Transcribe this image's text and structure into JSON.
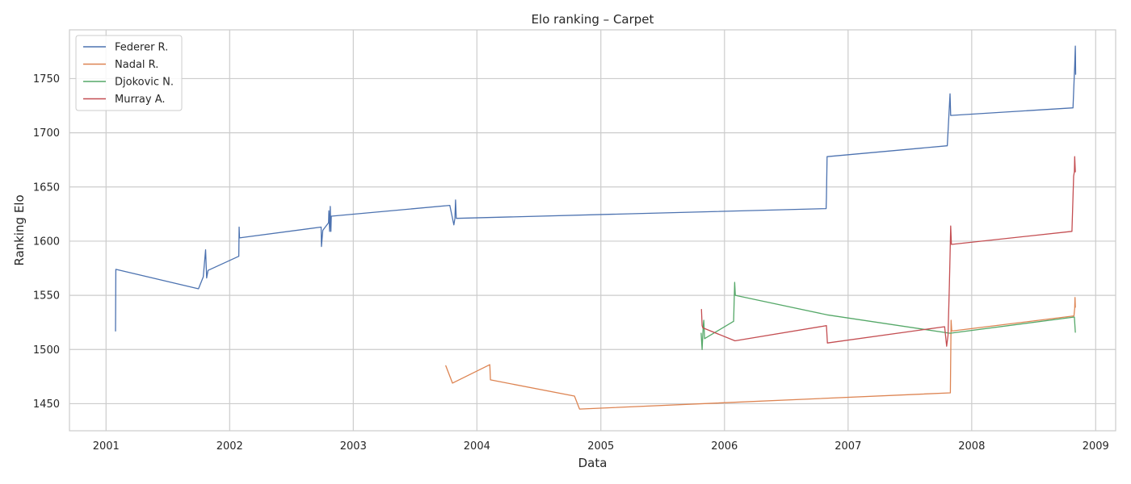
{
  "chart_data": {
    "type": "line",
    "title": "Elo ranking – Carpet",
    "xlabel": "Data",
    "ylabel": "Ranking Elo",
    "x_axis_type": "date",
    "xlim": [
      "2000-09-15",
      "2009-03-01"
    ],
    "ylim": [
      1425,
      1795
    ],
    "x_ticks": [
      "2001",
      "2002",
      "2003",
      "2004",
      "2005",
      "2006",
      "2007",
      "2008",
      "2009"
    ],
    "y_ticks": [
      1450,
      1500,
      1550,
      1600,
      1650,
      1700,
      1750
    ],
    "grid": true,
    "legend_position": "top-left",
    "series": [
      {
        "name": "Federer R.",
        "color": "#4c72b0",
        "points": [
          [
            "2001-01-29",
            1517
          ],
          [
            "2001-01-30",
            1574
          ],
          [
            "2001-10-01",
            1556
          ],
          [
            "2001-10-15",
            1567
          ],
          [
            "2001-10-22",
            1592
          ],
          [
            "2001-10-25",
            1566
          ],
          [
            "2001-10-29",
            1573
          ],
          [
            "2002-01-28",
            1586
          ],
          [
            "2002-01-29",
            1613
          ],
          [
            "2002-01-30",
            1603
          ],
          [
            "2002-09-28",
            1613
          ],
          [
            "2002-09-29",
            1595
          ],
          [
            "2002-10-03",
            1610
          ],
          [
            "2002-10-20",
            1617
          ],
          [
            "2002-10-21",
            1628
          ],
          [
            "2002-10-23",
            1609
          ],
          [
            "2002-10-25",
            1632
          ],
          [
            "2002-10-27",
            1609
          ],
          [
            "2002-10-28",
            1623
          ],
          [
            "2003-10-13",
            1633
          ],
          [
            "2003-10-25",
            1615
          ],
          [
            "2003-10-28",
            1621
          ],
          [
            "2003-10-30",
            1638
          ],
          [
            "2003-11-01",
            1621
          ],
          [
            "2006-10-28",
            1630
          ],
          [
            "2006-10-29",
            1640
          ],
          [
            "2006-10-31",
            1678
          ],
          [
            "2007-10-21",
            1688
          ],
          [
            "2007-10-29",
            1736
          ],
          [
            "2007-10-31",
            1716
          ],
          [
            "2008-10-26",
            1723
          ],
          [
            "2008-10-31",
            1762
          ],
          [
            "2008-11-02",
            1780
          ],
          [
            "2008-11-03",
            1754
          ]
        ]
      },
      {
        "name": "Nadal R.",
        "color": "#dd8452",
        "points": [
          [
            "2003-10-01",
            1485
          ],
          [
            "2003-10-21",
            1469
          ],
          [
            "2004-02-08",
            1486
          ],
          [
            "2004-02-10",
            1472
          ],
          [
            "2004-10-15",
            1457
          ],
          [
            "2004-10-30",
            1445
          ],
          [
            "2007-10-30",
            1460
          ],
          [
            "2007-10-31",
            1490
          ],
          [
            "2007-11-01",
            1527
          ],
          [
            "2007-11-03",
            1517
          ],
          [
            "2008-10-29",
            1531
          ],
          [
            "2008-10-31",
            1538
          ],
          [
            "2008-11-01",
            1548
          ],
          [
            "2008-11-02",
            1539
          ]
        ]
      },
      {
        "name": "Djokovic N.",
        "color": "#55a868",
        "points": [
          [
            "2005-10-24",
            1515
          ],
          [
            "2005-10-27",
            1500
          ],
          [
            "2005-10-30",
            1521
          ],
          [
            "2005-11-01",
            1527
          ],
          [
            "2005-11-03",
            1510
          ],
          [
            "2006-01-28",
            1526
          ],
          [
            "2006-01-31",
            1562
          ],
          [
            "2006-02-02",
            1550
          ],
          [
            "2006-10-31",
            1532
          ],
          [
            "2007-10-29",
            1515
          ],
          [
            "2008-10-30",
            1530
          ],
          [
            "2008-11-02",
            1516
          ]
        ]
      },
      {
        "name": "Murray A.",
        "color": "#c44e52",
        "points": [
          [
            "2005-10-25",
            1537
          ],
          [
            "2005-10-27",
            1522
          ],
          [
            "2005-10-29",
            1520
          ],
          [
            "2006-02-01",
            1508
          ],
          [
            "2006-10-29",
            1522
          ],
          [
            "2006-11-01",
            1506
          ],
          [
            "2007-10-13",
            1521
          ],
          [
            "2007-10-19",
            1503
          ],
          [
            "2007-10-23",
            1513
          ],
          [
            "2007-10-27",
            1560
          ],
          [
            "2007-10-29",
            1586
          ],
          [
            "2007-10-31",
            1614
          ],
          [
            "2007-11-02",
            1597
          ],
          [
            "2008-10-23",
            1609
          ],
          [
            "2008-10-28",
            1660
          ],
          [
            "2008-10-30",
            1664
          ],
          [
            "2008-10-31",
            1678
          ],
          [
            "2008-11-02",
            1664
          ]
        ]
      }
    ]
  }
}
